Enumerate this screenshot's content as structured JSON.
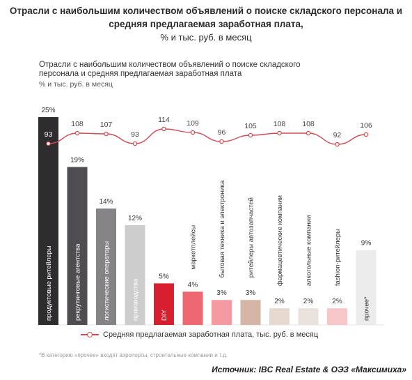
{
  "header": {
    "title": "Отрасли с наибольшим количеством объявлений о поиске складского персонала и средняя предлагаемая заработная плата,",
    "subtitle": "% и тыс. руб. в месяц"
  },
  "chart_data": {
    "type": "bar",
    "title": "Отрасли с наибольшим количеством объявлений о поиске складского персонала и средняя предлагаемая заработная плата",
    "subtitle": "% и тыс. руб. в месяц",
    "categories": [
      "продуктовые ритейлеры",
      "рекрутинговые агентства",
      "логистические операторы",
      "производства",
      "DIY",
      "маркетплейсы",
      "бытовая техника и электроника",
      "ритейлеры автозапчастей",
      "фармацевтические компании",
      "алкогольные компании",
      "fashion-ритейлеры",
      "прочее*"
    ],
    "series": [
      {
        "type": "bar",
        "values": [
          25,
          19,
          14,
          12,
          5,
          4,
          3,
          3,
          2,
          2,
          2,
          9
        ],
        "labels": [
          "25%",
          "19%",
          "14%",
          "12%",
          "5%",
          "4%",
          "3%",
          "3%",
          "2%",
          "2%",
          "2%",
          "9%"
        ],
        "colors": [
          "#2e2c2f",
          "#4f4c52",
          "#858386",
          "#cdcdcd",
          "#d71f2f",
          "#ee6872",
          "#f49aa0",
          "#d4b5a6",
          "#e7d9cf",
          "#eae2dc",
          "#f6c6c9",
          "#ececec"
        ]
      },
      {
        "type": "line",
        "name": "Средняя предлагаемая заработная плата, тыс. руб. в месяц",
        "values": [
          93,
          108,
          107,
          93,
          114,
          109,
          96,
          105,
          108,
          108,
          92,
          106
        ],
        "color": "#d04a55"
      }
    ]
  },
  "legend": {
    "label": "Средняя предлагаемая заработная плата, тыс. руб. в месяц"
  },
  "footnote": "*В категорию «прочее» входят аэропорты, строительные компании и т.д.",
  "source": "Источник: IBC Real Estate & ОЭЗ «Максимиха»"
}
